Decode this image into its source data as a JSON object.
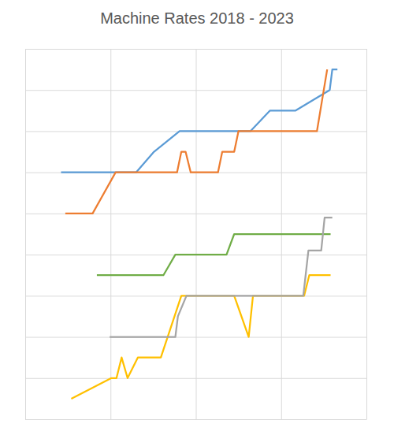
{
  "chart_data": {
    "type": "line",
    "title": "Machine Rates 2018 - 2023",
    "xlim": [
      0,
      4
    ],
    "xticks": [
      0,
      1,
      2,
      3,
      4
    ],
    "ylim": [
      0,
      9
    ],
    "yticks": [
      0,
      1,
      2,
      3,
      4,
      5,
      6,
      7,
      8,
      9
    ],
    "grid": true,
    "tick_labels": false,
    "series": [
      {
        "color": "#5b9bd5",
        "x": [
          0.42,
          1.3,
          1.51,
          1.81,
          2.64,
          2.87,
          3.17,
          3.57,
          3.6,
          3.66
        ],
        "values": [
          6.0,
          6.0,
          6.5,
          7.0,
          7.0,
          7.5,
          7.5,
          8.0,
          8.5,
          8.5
        ]
      },
      {
        "color": "#ed7d31",
        "x": [
          0.47,
          0.79,
          1.06,
          1.78,
          1.83,
          1.88,
          1.94,
          2.26,
          2.31,
          2.45,
          2.5,
          3.42,
          3.54
        ],
        "values": [
          5.0,
          5.0,
          6.0,
          6.0,
          6.5,
          6.5,
          6.0,
          6.0,
          6.5,
          6.5,
          7.0,
          7.0,
          8.5
        ]
      },
      {
        "color": "#70ad47",
        "x": [
          0.84,
          1.62,
          1.76,
          2.36,
          2.45,
          3.58
        ],
        "values": [
          3.5,
          3.5,
          4.0,
          4.0,
          4.5,
          4.5
        ]
      },
      {
        "color": "#ffc000",
        "x": [
          0.54,
          1.01,
          1.07,
          1.13,
          1.2,
          1.32,
          1.59,
          1.83,
          2.45,
          2.62,
          2.67,
          3.27,
          3.33,
          3.58
        ],
        "values": [
          0.5,
          1.0,
          1.0,
          1.5,
          1.0,
          1.5,
          1.5,
          3.0,
          3.0,
          2.0,
          3.0,
          3.0,
          3.5,
          3.5
        ]
      },
      {
        "color": "#a5a5a5",
        "x": [
          0.99,
          1.76,
          1.79,
          1.89,
          3.26,
          3.32,
          3.47,
          3.51,
          3.6
        ],
        "values": [
          2.0,
          2.0,
          2.5,
          3.0,
          3.0,
          4.1,
          4.1,
          4.9,
          4.9
        ]
      }
    ]
  }
}
